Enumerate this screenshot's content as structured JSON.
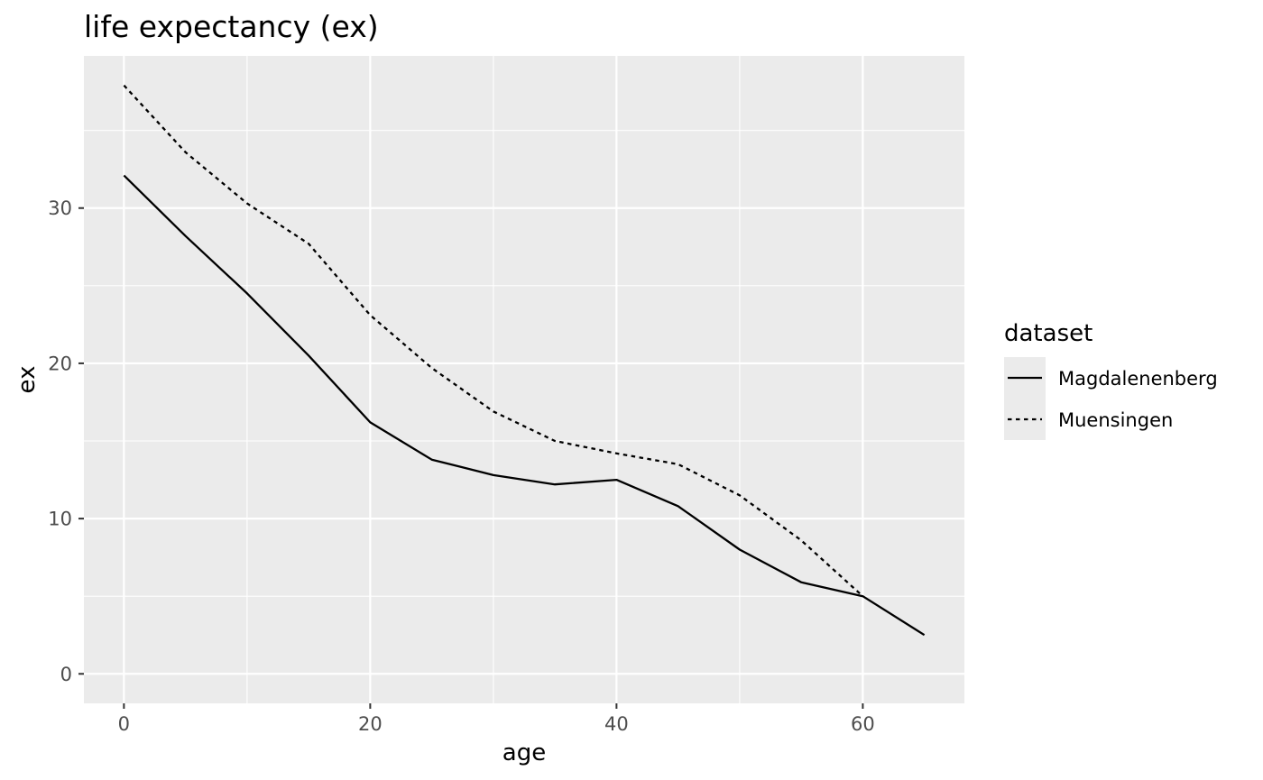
{
  "chart_data": {
    "type": "line",
    "title": "life expectancy (ex)",
    "xlabel": "age",
    "ylabel": "ex",
    "xlim": [
      -3.25,
      68.25
    ],
    "ylim": [
      -1.9,
      39.8
    ],
    "xticks": [
      0,
      20,
      40,
      60
    ],
    "yticks": [
      0,
      10,
      20,
      30
    ],
    "grid": true,
    "legend": {
      "title": "dataset",
      "position": "right"
    },
    "series": [
      {
        "name": "Magdalenenberg",
        "linetype": "solid",
        "color": "#000000",
        "x": [
          0,
          5,
          10,
          15,
          20,
          25,
          30,
          35,
          40,
          45,
          50,
          55,
          60,
          65
        ],
        "y": [
          32.1,
          28.2,
          24.5,
          20.5,
          16.2,
          13.8,
          12.8,
          12.2,
          12.5,
          10.8,
          8.0,
          5.9,
          5.0,
          2.5
        ]
      },
      {
        "name": "Muensingen",
        "linetype": "dashed",
        "color": "#000000",
        "x": [
          0,
          5,
          10,
          15,
          20,
          25,
          30,
          35,
          40,
          45,
          50,
          55,
          60
        ],
        "y": [
          37.9,
          33.6,
          30.3,
          27.7,
          23.1,
          19.7,
          16.9,
          15.0,
          14.2,
          13.5,
          11.5,
          8.6,
          5.0
        ]
      }
    ]
  },
  "colors": {
    "panel_background": "#ebebeb",
    "grid_major": "#ffffff",
    "grid_minor": "#f5f5f5",
    "tick_text": "#4d4d4d",
    "legend_key_background": "#ebebeb"
  }
}
